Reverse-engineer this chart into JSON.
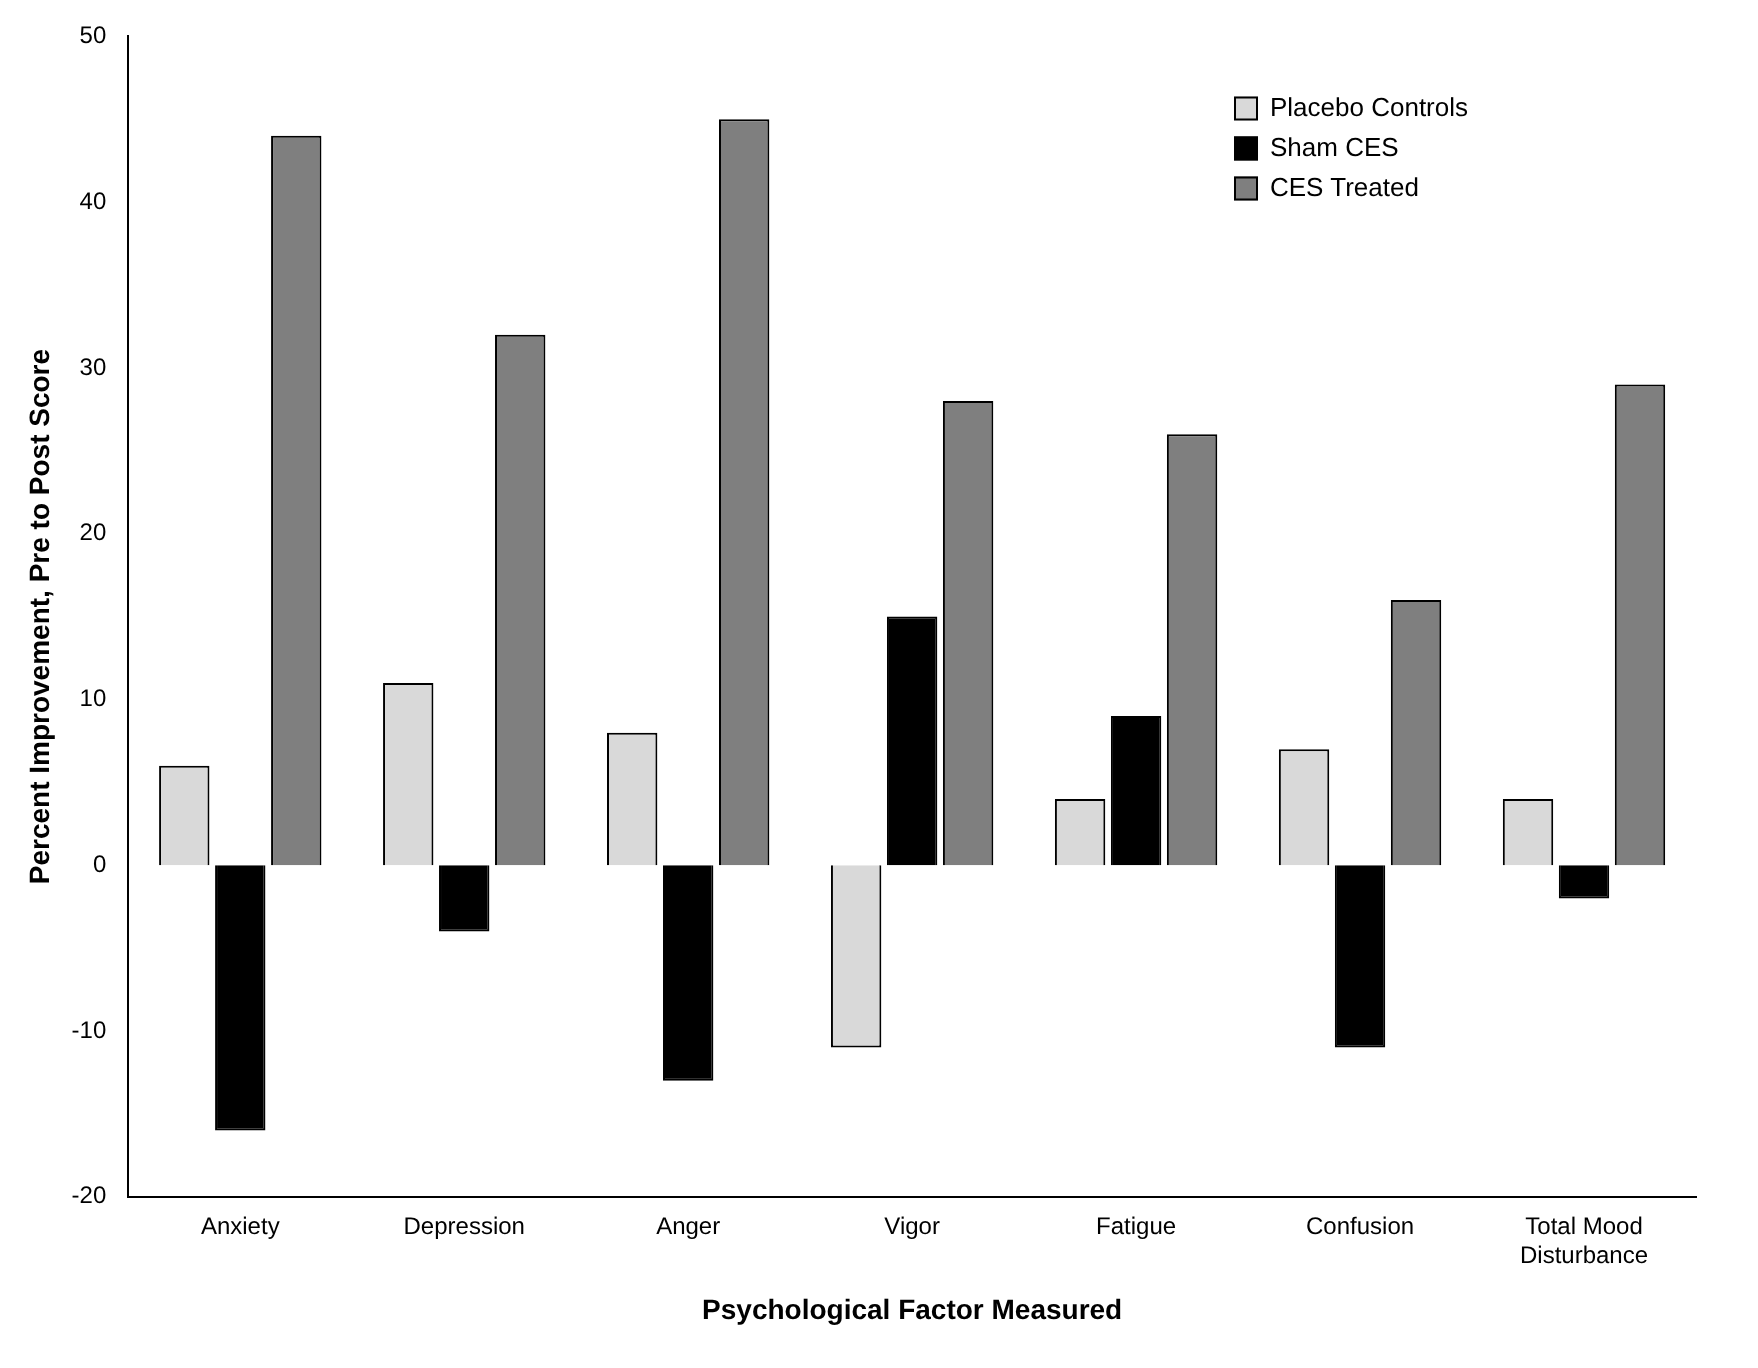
{
  "chart_data": {
    "type": "bar",
    "xlabel": "Psychological Factor Measured",
    "ylabel": "Percent Improvement, Pre to Post Score",
    "categories": [
      "Anxiety",
      "Depression",
      "Anger",
      "Vigor",
      "Fatigue",
      "Confusion",
      "Total Mood Disturbance"
    ],
    "series": [
      {
        "name": "Placebo Controls",
        "color": "#d9d9d9",
        "values": [
          6,
          11,
          8,
          -11,
          4,
          7,
          4
        ]
      },
      {
        "name": "Sham CES",
        "color": "#000000",
        "values": [
          -16,
          -4,
          -13,
          15,
          9,
          -11,
          -2
        ]
      },
      {
        "name": "CES Treated",
        "color": "#7f7f7f",
        "values": [
          44,
          32,
          45,
          28,
          26,
          16,
          29
        ]
      }
    ],
    "ylim": [
      -20,
      50
    ],
    "yticks": [
      -20,
      -10,
      0,
      10,
      20,
      30,
      40,
      50
    ],
    "grid": false,
    "legend": "top right"
  }
}
